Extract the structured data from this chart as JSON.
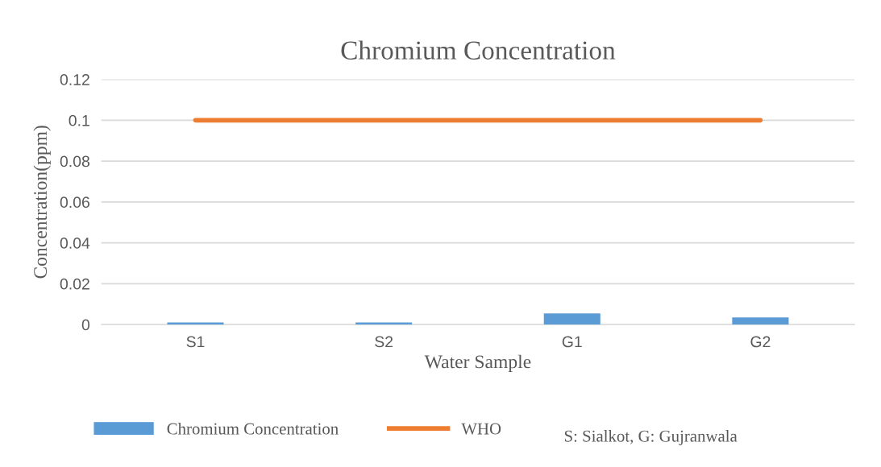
{
  "chart_data": {
    "type": "bar",
    "title": "Chromium Concentration",
    "xlabel": "Water Sample",
    "ylabel": "Concentration(ppm)",
    "categories": [
      "S1",
      "S2",
      "G1",
      "G2"
    ],
    "series": [
      {
        "name": "Chromium Concentration",
        "color": "#5b9bd5",
        "values": [
          0.001,
          0.001,
          0.0055,
          0.0035
        ]
      },
      {
        "name": "WHO",
        "type": "line",
        "color": "#ed7d31",
        "values": [
          0.1,
          0.1,
          0.1,
          0.1
        ]
      }
    ],
    "ylim": [
      0,
      0.12
    ],
    "yticks": [
      0,
      0.02,
      0.04,
      0.06,
      0.08,
      0.1,
      0.12
    ],
    "grid": "y",
    "legend": "bottom",
    "marker": "none",
    "annotations": [
      "S: Sialkot, G: Gujranwala"
    ]
  }
}
